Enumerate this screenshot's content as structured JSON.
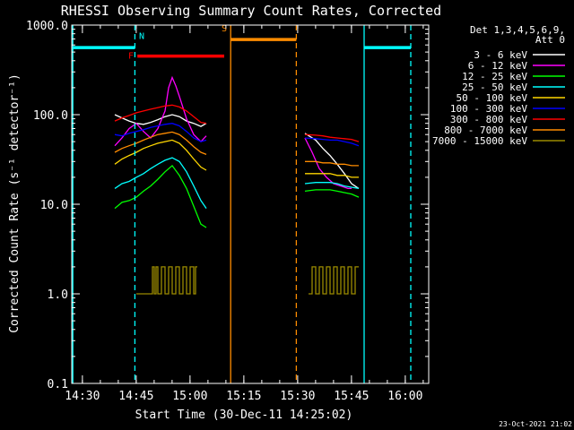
{
  "chart_data": {
    "type": "line",
    "title": "RHESSI Observing Summary Count Rates, Corrected",
    "xlabel": "Start Time (30-Dec-11 14:25:02)",
    "ylabel": "Corrected Count Rate (s⁻¹ detector⁻¹)",
    "x_unit": "minutes since 14:25:02",
    "xlim": [
      2.0,
      101.5
    ],
    "ylim": [
      0.1,
      1000
    ],
    "y_scale": "log",
    "x_ticks": [
      {
        "v": 4.97,
        "label": "14:30"
      },
      {
        "v": 19.97,
        "label": "14:45"
      },
      {
        "v": 34.97,
        "label": "15:00"
      },
      {
        "v": 49.97,
        "label": "15:15"
      },
      {
        "v": 64.97,
        "label": "15:30"
      },
      {
        "v": 79.97,
        "label": "15:45"
      },
      {
        "v": 94.97,
        "label": "16:00"
      }
    ],
    "y_ticks": [
      {
        "v": 0.1,
        "label": "0.1"
      },
      {
        "v": 1,
        "label": "1.0"
      },
      {
        "v": 10,
        "label": "10.0"
      },
      {
        "v": 100,
        "label": "100.0"
      },
      {
        "v": 1000,
        "label": "1000.0"
      }
    ],
    "legend": {
      "position": "top-right",
      "header": [
        "Det 1,3,4,5,6,9,",
        "Att 0"
      ]
    },
    "series": [
      {
        "name": "3 - 6 keV",
        "color": "#ffffff",
        "segments": [
          {
            "x": [
              14,
              16,
              18,
              20,
              22,
              24,
              26,
              28,
              30,
              32,
              34,
              36,
              38,
              39.5
            ],
            "y": [
              100,
              92,
              85,
              80,
              78,
              82,
              88,
              95,
              100,
              95,
              85,
              80,
              74,
              80
            ]
          },
          {
            "x": [
              67,
              70,
              72,
              74,
              76,
              78,
              80,
              82
            ],
            "y": [
              62,
              52,
              42,
              35,
              28,
              22,
              17,
              15
            ]
          }
        ]
      },
      {
        "name": "6 - 12 keV",
        "color": "#ff00ff",
        "segments": [
          {
            "x": [
              14,
              16,
              18,
              20,
              22,
              24,
              26,
              28,
              29,
              30,
              31,
              32,
              34,
              36,
              38,
              39.5
            ],
            "y": [
              45,
              55,
              70,
              80,
              65,
              55,
              70,
              110,
              200,
              260,
              210,
              160,
              90,
              60,
              50,
              58
            ]
          },
          {
            "x": [
              67,
              69,
              71,
              73,
              75,
              77,
              79,
              80
            ],
            "y": [
              55,
              38,
              25,
              20,
              17,
              16,
              15,
              15
            ]
          }
        ]
      },
      {
        "name": "12 - 25 keV",
        "color": "#00ff00",
        "segments": [
          {
            "x": [
              14,
              16,
              18,
              20,
              22,
              24,
              26,
              28,
              30,
              32,
              34,
              36,
              38,
              39.5
            ],
            "y": [
              9,
              10.5,
              11,
              12,
              14,
              16,
              19,
              23,
              27,
              21,
              15,
              9.5,
              6,
              5.5
            ]
          },
          {
            "x": [
              67,
              70,
              72,
              74,
              76,
              78,
              80,
              82
            ],
            "y": [
              14,
              14.5,
              14.5,
              14.5,
              14,
              13.5,
              13,
              12
            ]
          }
        ]
      },
      {
        "name": "25 - 50 keV",
        "color": "#00ffff",
        "segments": [
          {
            "x": [
              14,
              16,
              18,
              20,
              22,
              24,
              26,
              28,
              30,
              32,
              34,
              36,
              38,
              39.5
            ],
            "y": [
              15,
              17,
              18,
              20,
              22,
              25,
              28,
              31,
              33,
              30,
              23,
              16,
              11,
              9
            ]
          },
          {
            "x": [
              67,
              70,
              72,
              74,
              76,
              78,
              80,
              82
            ],
            "y": [
              17,
              17.5,
              17.5,
              17.5,
              17,
              16,
              15.5,
              15
            ]
          }
        ]
      },
      {
        "name": "50 - 100 keV",
        "color": "#ffd700",
        "segments": [
          {
            "x": [
              14,
              16,
              18,
              20,
              22,
              24,
              26,
              28,
              30,
              32,
              34,
              36,
              38,
              39.5
            ],
            "y": [
              28,
              32,
              35,
              38,
              42,
              45,
              48,
              50,
              52,
              48,
              40,
              32,
              26,
              24
            ]
          },
          {
            "x": [
              67,
              70,
              72,
              74,
              76,
              78,
              80,
              82
            ],
            "y": [
              22,
              22,
              22,
              22,
              21,
              21,
              20,
              20
            ]
          }
        ]
      },
      {
        "name": "100 - 300 keV",
        "color": "#0000ff",
        "segments": [
          {
            "x": [
              14,
              16,
              18,
              20,
              22,
              24,
              26,
              28,
              30,
              32,
              34,
              36,
              38,
              39.5
            ],
            "y": [
              60,
              58,
              62,
              65,
              68,
              72,
              75,
              78,
              80,
              75,
              65,
              55,
              50,
              52
            ]
          },
          {
            "x": [
              67,
              70,
              72,
              74,
              76,
              78,
              80,
              82
            ],
            "y": [
              55,
              54,
              53,
              52,
              52,
              50,
              48,
              45
            ]
          }
        ]
      },
      {
        "name": "300 - 800 keV",
        "color": "#ff0000",
        "segments": [
          {
            "x": [
              14,
              16,
              18,
              20,
              22,
              24,
              26,
              28,
              30,
              32,
              34,
              36,
              38,
              39.5
            ],
            "y": [
              85,
              92,
              98,
              105,
              110,
              115,
              120,
              125,
              128,
              122,
              110,
              95,
              82,
              80
            ]
          },
          {
            "x": [
              67,
              70,
              72,
              74,
              76,
              78,
              80,
              82
            ],
            "y": [
              60,
              59,
              58,
              56,
              55,
              54,
              53,
              50
            ]
          }
        ]
      },
      {
        "name": "800 - 7000 keV",
        "color": "#ff8c00",
        "segments": [
          {
            "x": [
              14,
              16,
              18,
              20,
              22,
              24,
              26,
              28,
              30,
              32,
              34,
              36,
              38,
              39.5
            ],
            "y": [
              38,
              42,
              45,
              48,
              52,
              56,
              60,
              62,
              64,
              60,
              52,
              44,
              38,
              36
            ]
          },
          {
            "x": [
              67,
              70,
              72,
              74,
              76,
              78,
              80,
              82
            ],
            "y": [
              30,
              30,
              29,
              29,
              28,
              28,
              27,
              27
            ]
          }
        ]
      },
      {
        "name": "7000 - 15000 keV",
        "color": "#9a8a00",
        "segments": [
          {
            "x": [
              20,
              24.5,
              24.5,
              25,
              25,
              25.5,
              25.5,
              26,
              26,
              27,
              27,
              28,
              28,
              29,
              29,
              30,
              30,
              31,
              31,
              32,
              32,
              33,
              33,
              34,
              34,
              35,
              35,
              36,
              36,
              36.5,
              36.5,
              37
            ],
            "y": [
              1,
              1,
              2,
              2,
              1,
              1,
              2,
              2,
              1,
              1,
              2,
              2,
              1,
              1,
              2,
              2,
              1,
              1,
              2,
              2,
              1,
              1,
              2,
              2,
              1,
              1,
              2,
              2,
              1,
              1,
              2,
              2
            ]
          },
          {
            "x": [
              68,
              69,
              69,
              70,
              70,
              71,
              71,
              72,
              72,
              73,
              73,
              74,
              74,
              75,
              75,
              76,
              76,
              77,
              77,
              78,
              78,
              79,
              79,
              80,
              80,
              81,
              81,
              82
            ],
            "y": [
              1,
              1,
              2,
              2,
              1,
              1,
              2,
              2,
              1,
              1,
              2,
              2,
              1,
              1,
              2,
              2,
              1,
              1,
              2,
              2,
              1,
              1,
              2,
              2,
              1,
              1,
              2,
              2
            ]
          }
        ]
      }
    ],
    "markers": [
      {
        "label": "N",
        "color": "#00ffff",
        "x": 19.6,
        "linestyle": "dashed",
        "bars": [
          {
            "x": [
              2,
              19.6
            ],
            "y": 560
          }
        ]
      },
      {
        "label": "N",
        "color": "#00ffff",
        "x": 2.3,
        "linestyle": "solid",
        "bars": []
      },
      {
        "label": "N",
        "color": "#00ffff",
        "x": 83.5,
        "linestyle": "solid",
        "bars": [
          {
            "x": [
              83.5,
              96.5
            ],
            "y": 560
          }
        ]
      },
      {
        "label": "N",
        "color": "#00ffff",
        "x": 96.5,
        "linestyle": "dashed",
        "bars": []
      },
      {
        "label": "F",
        "color": "#ff0000",
        "x": 20.3,
        "linestyle": "none",
        "bars": [
          {
            "x": [
              20.3,
              44.5
            ],
            "y": 450
          }
        ]
      },
      {
        "label": "S",
        "color": "#ff8c00",
        "x": 46.3,
        "linestyle": "solid",
        "bars": [
          {
            "x": [
              46.3,
              64.6
            ],
            "y": 690
          }
        ]
      },
      {
        "label": "S",
        "color": "#ff8c00",
        "x": 64.6,
        "linestyle": "dashed",
        "bars": []
      }
    ],
    "marker_label_positions": [
      {
        "label": "N",
        "color": "#00ffff",
        "x": 21.5,
        "y": 700
      },
      {
        "label": "F",
        "color": "#ff0000",
        "x": 18.5,
        "y": 420
      },
      {
        "label": "S",
        "color": "#ff8c00",
        "x": 44.5,
        "y": 850
      }
    ],
    "footer_date": "23-Oct-2021 21:02"
  }
}
